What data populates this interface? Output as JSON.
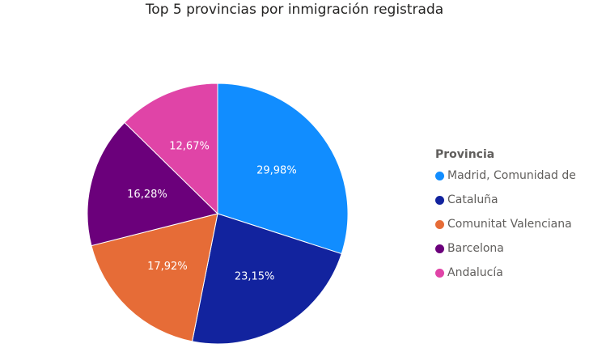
{
  "title": "Top 5 provincias por inmigración registrada",
  "legend": {
    "title": "Provincia"
  },
  "chart_data": {
    "type": "pie",
    "title": "Top 5 provincias por inmigración registrada",
    "legend_title": "Provincia",
    "legend_position": "right",
    "categories": [
      "Madrid, Comunidad de",
      "Cataluña",
      "Comunitat Valenciana",
      "Barcelona",
      "Andalucía"
    ],
    "values": [
      29.98,
      23.15,
      17.92,
      16.28,
      12.67
    ],
    "labels": [
      "29,98%",
      "23,15%",
      "17,92%",
      "16,28%",
      "12,67%"
    ],
    "colors": [
      "#118DFF",
      "#12239E",
      "#E66C37",
      "#6B007B",
      "#E044A7"
    ]
  }
}
